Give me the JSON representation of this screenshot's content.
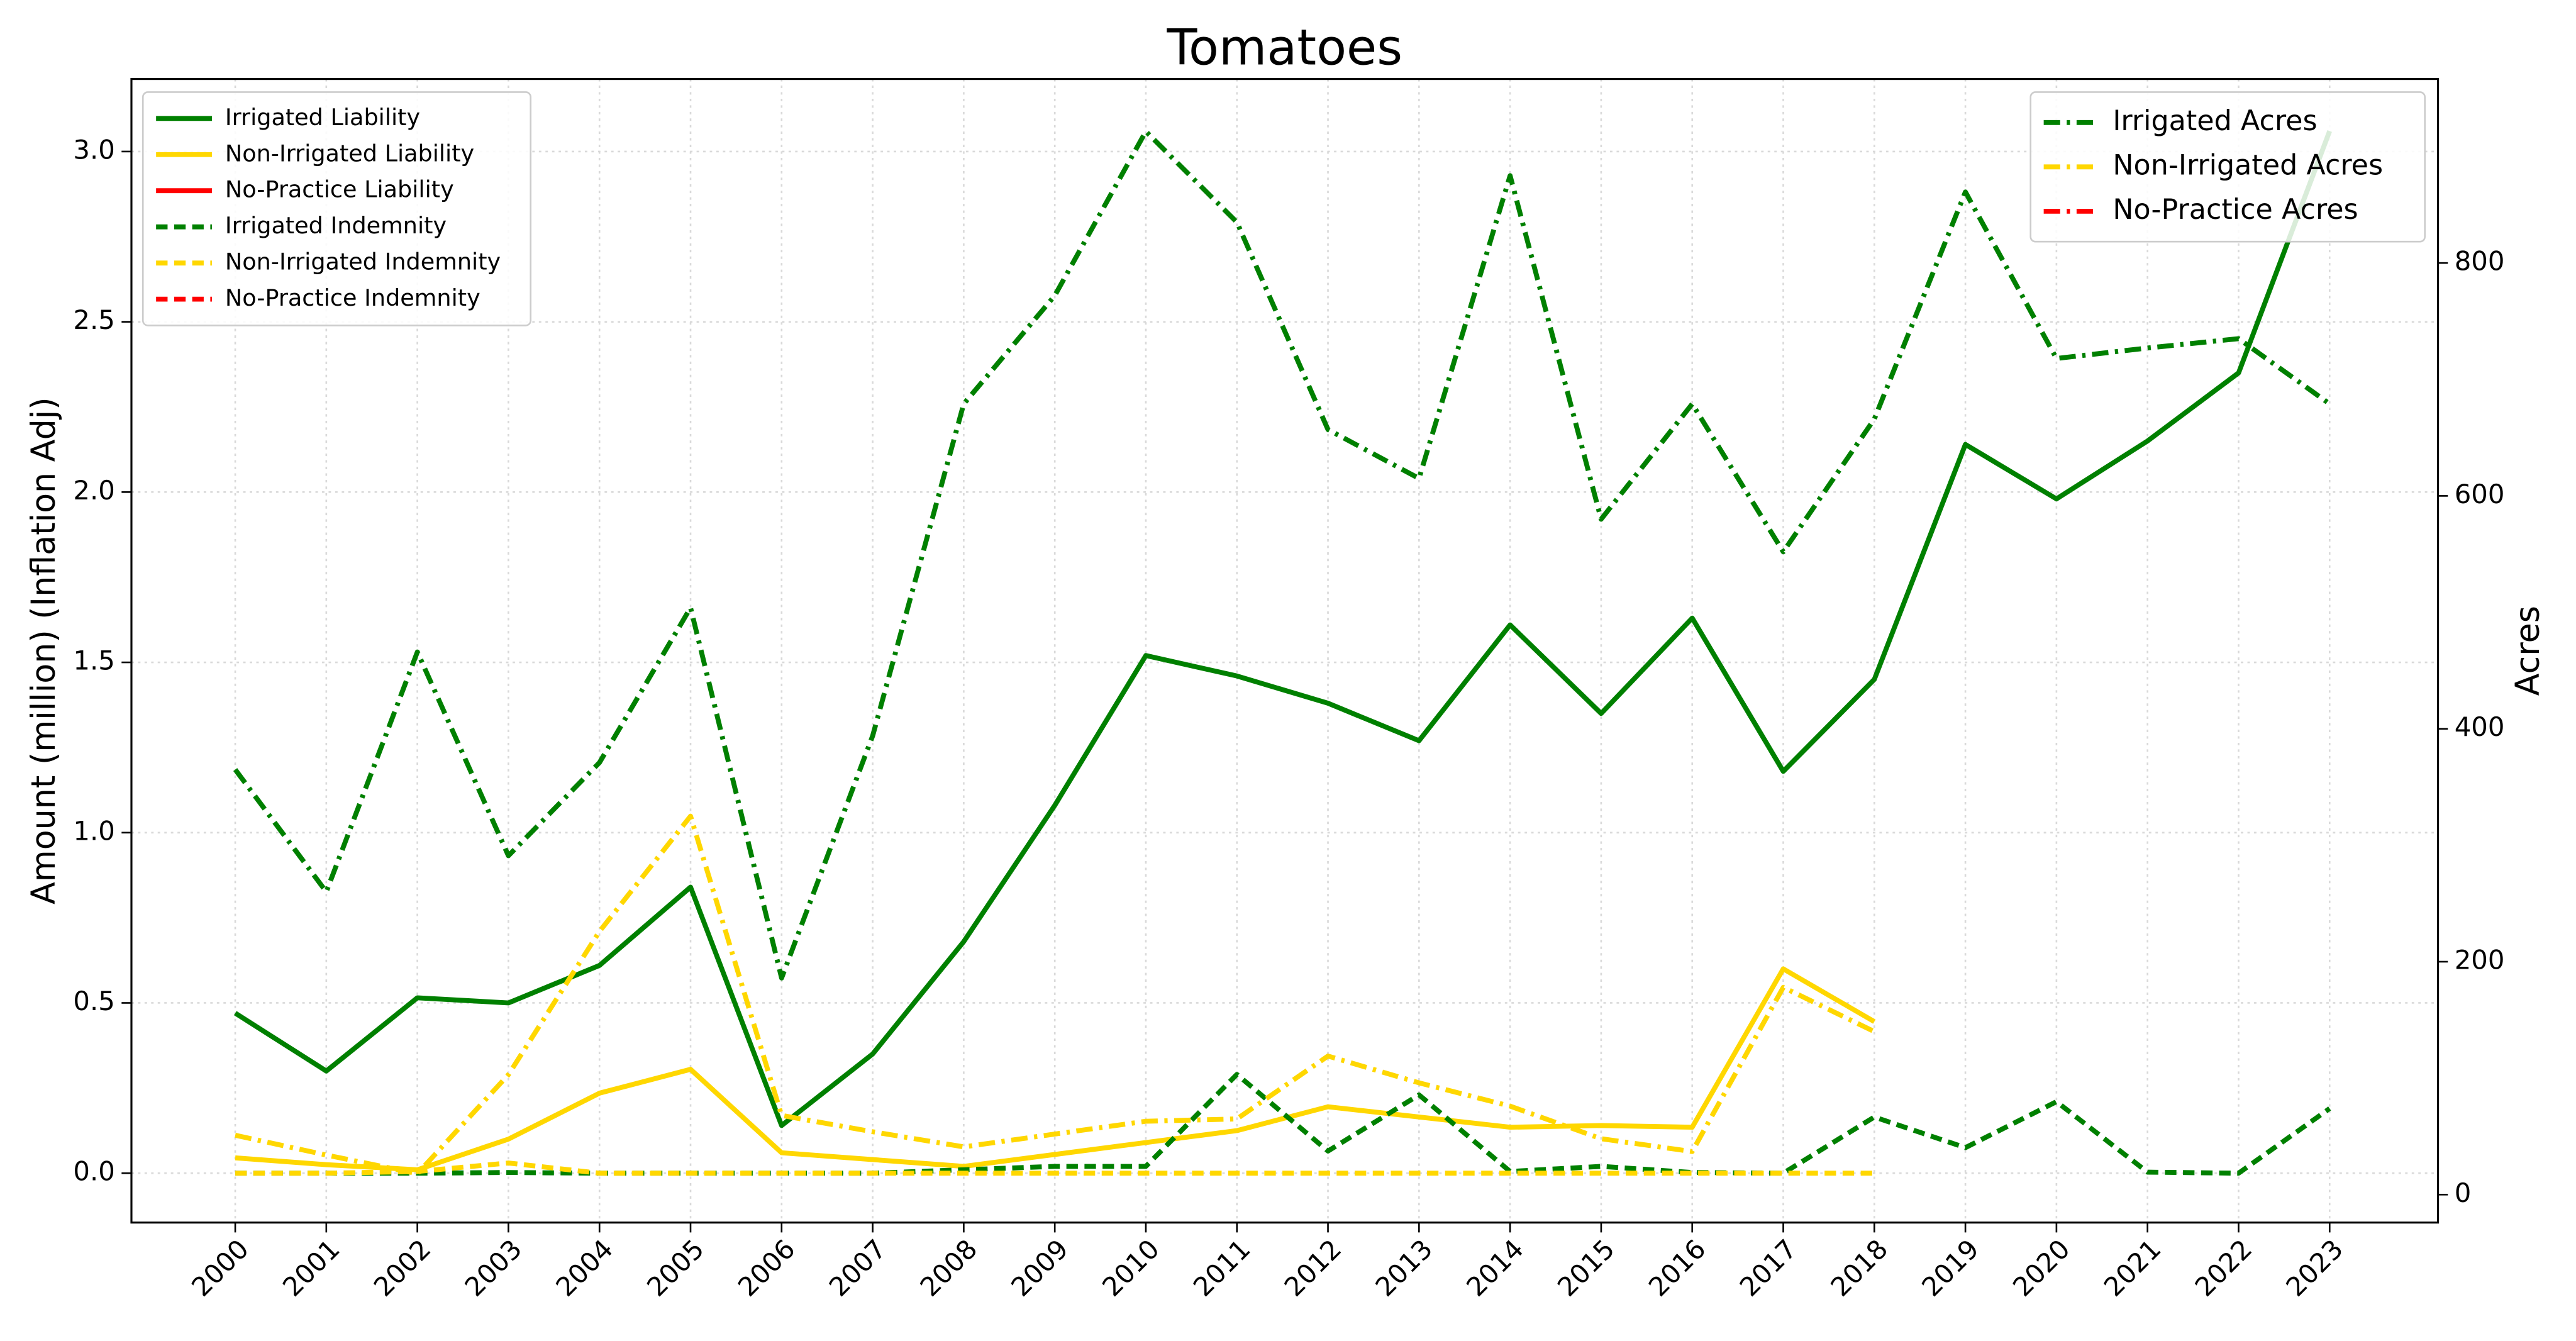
{
  "chart_data": {
    "type": "line",
    "title": "Tomatoes",
    "ylabel": "Amount (million) (Inflation Adj)",
    "y2label": "Acres",
    "x": [
      2000,
      2001,
      2002,
      2003,
      2004,
      2005,
      2006,
      2007,
      2008,
      2009,
      2010,
      2011,
      2012,
      2013,
      2014,
      2015,
      2016,
      2017,
      2018,
      2019,
      2020,
      2021,
      2022,
      2023
    ],
    "xlim": [
      1998.86,
      2024.19
    ],
    "xticks": [
      2000,
      2001,
      2002,
      2003,
      2004,
      2005,
      2006,
      2007,
      2008,
      2009,
      2010,
      2011,
      2012,
      2013,
      2014,
      2015,
      2016,
      2017,
      2018,
      2019,
      2020,
      2021,
      2022,
      2023
    ],
    "ylim": [
      -0.145,
      3.213
    ],
    "yticks": [
      {
        "value": 0,
        "label": "0.0"
      },
      0.5,
      {
        "value": 1,
        "label": "1.0"
      },
      1.5,
      {
        "value": 2,
        "label": "2.0"
      },
      2.5,
      {
        "value": 3,
        "label": "3.0"
      }
    ],
    "y2lim": [
      -24,
      958
    ],
    "y2ticks": [
      0,
      200,
      400,
      600,
      800
    ],
    "grid": true,
    "legend_loc": "upper left",
    "legend2_loc": "upper right",
    "series": [
      {
        "name": "Irrigated Liability",
        "color": "#008000",
        "linestyle": "solid",
        "values": [
          0.47,
          0.3,
          0.515,
          0.5,
          0.61,
          0.84,
          0.14,
          0.35,
          0.68,
          1.08,
          1.52,
          1.46,
          1.38,
          1.27,
          1.61,
          1.35,
          1.63,
          1.18,
          1.45,
          2.14,
          1.98,
          2.15,
          2.35,
          3.06
        ]
      },
      {
        "name": "Non-Irrigated Liability",
        "color": "#FFD700",
        "linestyle": "solid",
        "values": [
          0.045,
          0.025,
          0.01,
          0.1,
          0.235,
          0.305,
          0.06,
          0.04,
          0.02,
          0.055,
          0.09,
          0.125,
          0.195,
          0.165,
          0.135,
          0.14,
          0.135,
          0.6,
          0.445,
          null,
          null,
          null,
          null,
          null
        ]
      },
      {
        "name": "No-Practice Liability",
        "color": "#FF0000",
        "linestyle": "solid",
        "values": [
          null,
          null,
          null,
          null,
          null,
          null,
          null,
          null,
          null,
          null,
          null,
          null,
          null,
          null,
          null,
          null,
          null,
          null,
          null,
          null,
          null,
          null,
          null,
          null
        ]
      },
      {
        "name": "Irrigated Indemnity",
        "color": "#008000",
        "linestyle": "dashed",
        "values": [
          0,
          0,
          0,
          0.002,
          0,
          0,
          0,
          0,
          0.01,
          0.02,
          0.02,
          0.29,
          0.065,
          0.23,
          0.005,
          0.02,
          0.002,
          0,
          0.165,
          0.075,
          0.21,
          0.003,
          0,
          0.19
        ]
      },
      {
        "name": "Non-Irrigated Indemnity",
        "color": "#FFD700",
        "linestyle": "dashed",
        "values": [
          0,
          0,
          0.005,
          0.03,
          0,
          0,
          0,
          0,
          0,
          0,
          0,
          0,
          0,
          0,
          0,
          0,
          0,
          0,
          0,
          null,
          null,
          null,
          null,
          null
        ]
      },
      {
        "name": "No-Practice Indemnity",
        "color": "#FF0000",
        "linestyle": "dashed",
        "values": [
          null,
          null,
          null,
          null,
          null,
          null,
          null,
          null,
          null,
          null,
          null,
          null,
          null,
          null,
          null,
          null,
          null,
          null,
          null,
          null,
          null,
          null,
          null,
          null
        ]
      },
      {
        "name": "Irrigated Acres",
        "color": "#008000",
        "linestyle": "dashdot",
        "axis": "y2",
        "values": [
          365,
          260,
          466,
          291,
          371,
          504,
          186,
          394,
          679,
          772,
          913,
          835,
          657,
          615,
          875,
          580,
          679,
          552,
          666,
          861,
          718,
          727,
          735,
          679
        ]
      },
      {
        "name": "Non-Irrigated Acres",
        "color": "#FFD700",
        "linestyle": "dashdot",
        "axis": "y2",
        "values": [
          51,
          34,
          18,
          103,
          226,
          325,
          68,
          54,
          41,
          52,
          63,
          65,
          119,
          96,
          76,
          48,
          37,
          178,
          140,
          null,
          null,
          null,
          null,
          null
        ]
      },
      {
        "name": "No-Practice Acres",
        "color": "#FF0000",
        "linestyle": "dashdot",
        "axis": "y2",
        "values": [
          null,
          null,
          null,
          null,
          null,
          null,
          null,
          null,
          null,
          null,
          null,
          null,
          null,
          null,
          null,
          null,
          null,
          null,
          null,
          null,
          null,
          null,
          null,
          null
        ]
      }
    ]
  }
}
